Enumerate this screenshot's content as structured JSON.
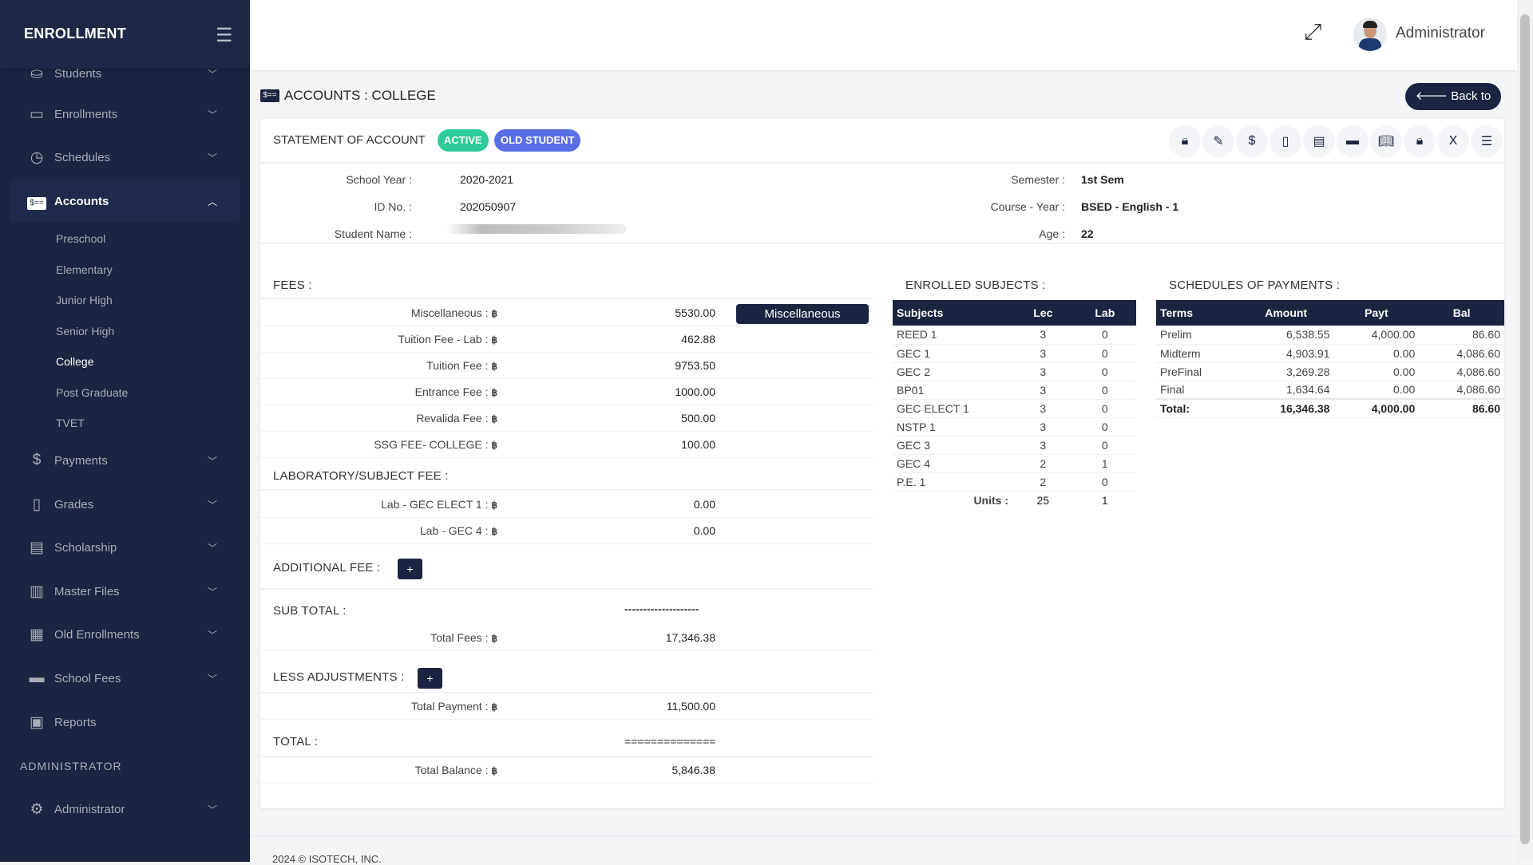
{
  "sidebar": {
    "brand": "ENROLLMENT",
    "items": [
      {
        "label": "Students",
        "icon": "inbox-user-icon",
        "glyph": "⛀",
        "top": 72
      },
      {
        "label": "Enrollments",
        "icon": "inbox-icon",
        "glyph": "▭",
        "top": 123
      },
      {
        "label": "Schedules",
        "icon": "clock-icon",
        "glyph": "◷",
        "top": 177
      },
      {
        "label": "Payments",
        "icon": "dollar-hand-icon",
        "glyph": "$",
        "top": 557
      },
      {
        "label": "Grades",
        "icon": "file-icon",
        "glyph": "▯",
        "top": 612
      },
      {
        "label": "Scholarship",
        "icon": "document-icon",
        "glyph": "▤",
        "top": 666
      },
      {
        "label": "Master Files",
        "icon": "file-text-icon",
        "glyph": "▥",
        "top": 721
      },
      {
        "label": "Old Enrollments",
        "icon": "archive-icon",
        "glyph": "▦",
        "top": 775
      },
      {
        "label": "School Fees",
        "icon": "credit-card-icon",
        "glyph": "▬",
        "top": 830
      },
      {
        "label": "Reports",
        "icon": "report-icon",
        "glyph": "▣",
        "top": 885,
        "nochev": true
      },
      {
        "label": "Administrator",
        "icon": "gear-icon",
        "glyph": "⚙",
        "top": 994
      }
    ],
    "active": {
      "label": "Accounts",
      "icon": "money-card-icon"
    },
    "subitems": [
      "Preschool",
      "Elementary",
      "Junior High",
      "Senior High",
      "College",
      "Post Graduate",
      "TVET"
    ],
    "current_sub": "College",
    "section": "ADMINISTRATOR"
  },
  "header": {
    "user": "Administrator"
  },
  "page": {
    "title": "ACCOUNTS : COLLEGE",
    "back": "Back to List"
  },
  "statement": {
    "title": "STATEMENT OF ACCOUNT",
    "badges": [
      {
        "label": "ACTIVE",
        "color": "#2ecc9a"
      },
      {
        "label": "OLD STUDENT",
        "color": "#5a6ee8"
      }
    ],
    "tools": [
      "file-lock-icon",
      "edit-icon",
      "money-receipt-icon",
      "file-alt-icon",
      "file-text-icon",
      "credit-card-icon",
      "book-open-icon",
      "lock-icon",
      "file-excel-icon",
      "server-icon"
    ],
    "info_left": [
      {
        "label": "School Year :",
        "value": "2020-2021"
      },
      {
        "label": "ID No. :",
        "value": "202050907"
      },
      {
        "label": "Student Name :",
        "value": ""
      }
    ],
    "info_right": [
      {
        "label": "Semester :",
        "value": "1st Sem"
      },
      {
        "label": "Course - Year :",
        "value": "BSED - English - 1"
      },
      {
        "label": "Age :",
        "value": "22"
      }
    ]
  },
  "fees": {
    "heading": "FEES :",
    "currency": "฿",
    "items": [
      {
        "label": "Miscellaneous :",
        "value": "5530.00"
      },
      {
        "label": "Tuition Fee - Lab :",
        "value": "462.88"
      },
      {
        "label": "Tuition Fee :",
        "value": "9753.50"
      },
      {
        "label": "Entrance Fee :",
        "value": "1000.00"
      },
      {
        "label": "Revalida Fee :",
        "value": "500.00"
      },
      {
        "label": "SSG FEE- COLLEGE :",
        "value": "100.00"
      }
    ],
    "misc_button": "Miscellaneous",
    "lab_heading": "LABORATORY/SUBJECT FEE :",
    "lab_items": [
      {
        "label": "Lab - GEC ELECT 1 :",
        "value": "0.00"
      },
      {
        "label": "Lab - GEC 4 :",
        "value": "0.00"
      }
    ],
    "additional_heading": "ADDITIONAL FEE :",
    "subtotal_heading": "SUB TOTAL :",
    "subtotal_rule": "--------------------",
    "total_fees": {
      "label": "Total Fees :",
      "value": "17,346.38"
    },
    "less_heading": "LESS ADJUSTMENTS :",
    "total_payment": {
      "label": "Total Payment :",
      "value": "11,500.00"
    },
    "total_heading": "TOTAL :",
    "total_rule": "==============",
    "total_balance": {
      "label": "Total Balance :",
      "value": "5,846.38"
    },
    "plus": "+"
  },
  "subjects": {
    "heading": "ENROLLED SUBJECTS :",
    "columns": [
      "Subjects",
      "Lec",
      "Lab"
    ],
    "rows": [
      [
        "REED 1",
        "3",
        "0"
      ],
      [
        "GEC 1",
        "3",
        "0"
      ],
      [
        "GEC 2",
        "3",
        "0"
      ],
      [
        "BP01",
        "3",
        "0"
      ],
      [
        "GEC ELECT 1",
        "3",
        "0"
      ],
      [
        "NSTP 1",
        "3",
        "0"
      ],
      [
        "GEC 3",
        "3",
        "0"
      ],
      [
        "GEC 4",
        "2",
        "1"
      ],
      [
        "P.E. 1",
        "2",
        "0"
      ]
    ],
    "units_label": "Units :",
    "units": [
      "25",
      "1"
    ]
  },
  "payments": {
    "heading": "SCHEDULES OF PAYMENTS :",
    "columns": [
      "Terms",
      "Amount",
      "Payt",
      "Bal"
    ],
    "rows": [
      [
        "Prelim",
        "6,538.55",
        "4,000.00",
        "86.60"
      ],
      [
        "Midterm",
        "4,903.91",
        "0.00",
        "4,086.60"
      ],
      [
        "PreFinal",
        "3,269.28",
        "0.00",
        "4,086.60"
      ],
      [
        "Final",
        "1,634.64",
        "0.00",
        "4,086.60"
      ]
    ],
    "total": [
      "Total:",
      "16,346.38",
      "4,000.00",
      "86.60"
    ]
  },
  "footer": "2024 © ISOTECH, INC."
}
